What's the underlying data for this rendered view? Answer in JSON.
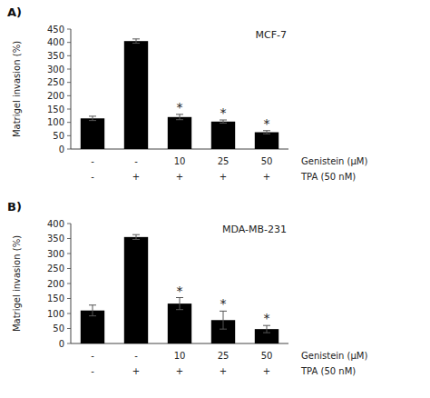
{
  "chart_data": [
    {
      "type": "bar",
      "title": "A)",
      "subtitle": "MCF-7",
      "ylabel": "Matrigel invasion (%)",
      "categories": [
        "-",
        "-",
        "10",
        "25",
        "50"
      ],
      "categories_row2": [
        "-",
        "+",
        "+",
        "+",
        "+"
      ],
      "row_labels": [
        "Genistein (μM)",
        "TPA (50 nM)"
      ],
      "values": [
        115,
        405,
        120,
        103,
        63
      ],
      "errors": [
        8,
        8,
        10,
        6,
        6
      ],
      "significance": [
        false,
        false,
        true,
        true,
        true
      ],
      "significance_label": "*",
      "color": "#000000",
      "ylim": [
        0,
        450
      ],
      "yticks": [
        0,
        50,
        100,
        150,
        200,
        250,
        300,
        350,
        400,
        450
      ],
      "grid": false
    },
    {
      "type": "bar",
      "title": "B)",
      "subtitle": "MDA-MB-231",
      "ylabel": "Matrigel invasion (%)",
      "categories": [
        "-",
        "-",
        "10",
        "25",
        "50"
      ],
      "categories_row2": [
        "-",
        "+",
        "+",
        "+",
        "+"
      ],
      "row_labels": [
        "Genistein (μM)",
        "TPA (50 nM)"
      ],
      "values": [
        110,
        355,
        133,
        78,
        48
      ],
      "errors": [
        18,
        8,
        20,
        30,
        12
      ],
      "significance": [
        false,
        false,
        true,
        true,
        true
      ],
      "significance_label": "*",
      "color": "#000000",
      "ylim": [
        0,
        400
      ],
      "yticks": [
        0,
        50,
        100,
        150,
        200,
        250,
        300,
        350,
        400
      ],
      "grid": false
    }
  ]
}
